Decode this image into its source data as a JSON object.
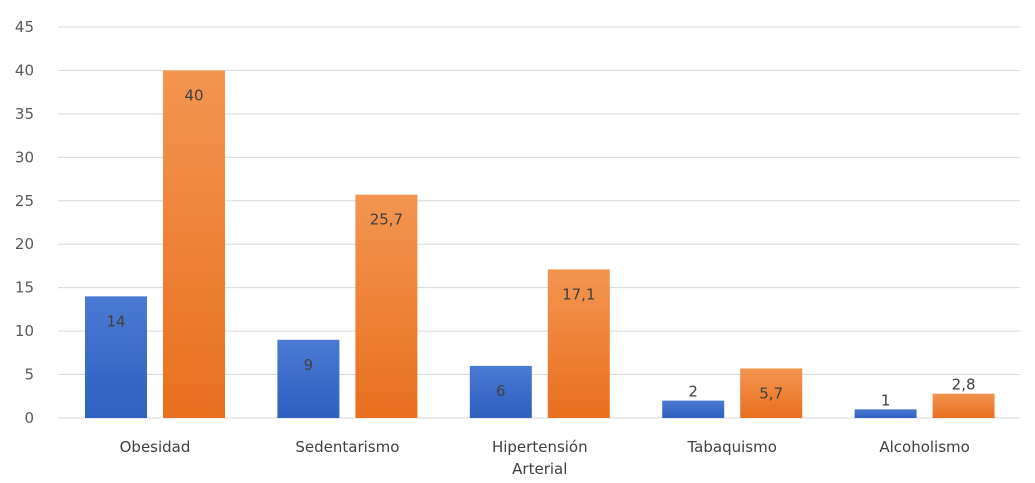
{
  "chart_data": {
    "type": "bar",
    "categories": [
      [
        "Obesidad"
      ],
      [
        "Sedentarismo"
      ],
      [
        "Hipertensión",
        "Arterial"
      ],
      [
        "Tabaquismo"
      ],
      [
        "Alcoholismo"
      ]
    ],
    "series": [
      {
        "values": [
          14,
          9,
          6,
          2,
          1
        ],
        "labels": [
          "14",
          "9",
          "6",
          "2",
          "1"
        ]
      },
      {
        "values": [
          40,
          25.7,
          17.1,
          5.7,
          2.8
        ],
        "labels": [
          "40",
          "25,7",
          "17,1",
          "5,7",
          "2,8"
        ]
      }
    ],
    "title": "",
    "xlabel": "",
    "ylabel": "",
    "ylim": [
      0,
      45
    ],
    "yticks": [
      0,
      5,
      10,
      15,
      20,
      25,
      30,
      35,
      40,
      45
    ],
    "grid": true,
    "legend": "none",
    "colors": {
      "series0_top": "#4a7ad3",
      "series0_bottom": "#2f5fc0",
      "series1_top": "#f39550",
      "series1_bottom": "#e8701f"
    }
  }
}
